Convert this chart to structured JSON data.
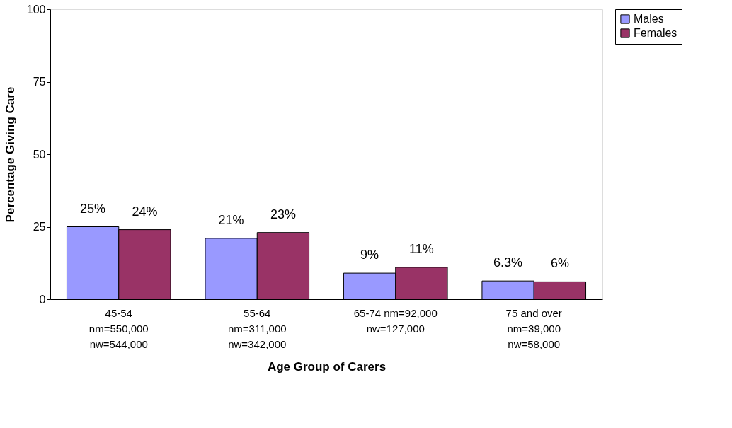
{
  "chart_data": {
    "type": "bar",
    "xlabel": "Age Group of Carers",
    "ylabel": "Percentage Giving Care",
    "categories": [
      "45-54\nnm=550,000\nnw=544,000",
      "55-64\nnm=311,000\nnw=342,000",
      "65-74 nm=92,000\nnw=127,000",
      "75 and over\nnm=39,000\nnw=58,000"
    ],
    "series": [
      {
        "name": "Males",
        "color": "#9999ff",
        "values": [
          25,
          21,
          9,
          6.3
        ],
        "value_labels": [
          "25%",
          "21%",
          "9%",
          "6.3%"
        ]
      },
      {
        "name": "Females",
        "color": "#993366",
        "values": [
          24,
          23,
          11,
          6
        ],
        "value_labels": [
          "24%",
          "23%",
          "11%",
          "6%"
        ]
      }
    ],
    "ylim": [
      0,
      100
    ],
    "yticks": [
      0,
      25,
      50,
      75,
      100
    ],
    "grid": false,
    "legend": "right"
  }
}
